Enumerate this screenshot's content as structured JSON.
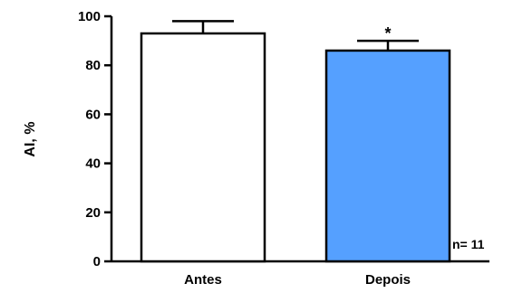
{
  "chart_data": {
    "type": "bar",
    "categories": [
      "Antes",
      "Depois"
    ],
    "values": [
      93,
      86
    ],
    "errors": [
      5,
      4
    ],
    "annotations": [
      "",
      "*"
    ],
    "colors": [
      "#ffffff",
      "#55a0ff"
    ],
    "ylabel": "AI, %",
    "ylim": [
      0,
      100
    ],
    "yticks": [
      "0",
      "20",
      "40",
      "60",
      "80",
      "100"
    ],
    "note": "n= 11"
  }
}
